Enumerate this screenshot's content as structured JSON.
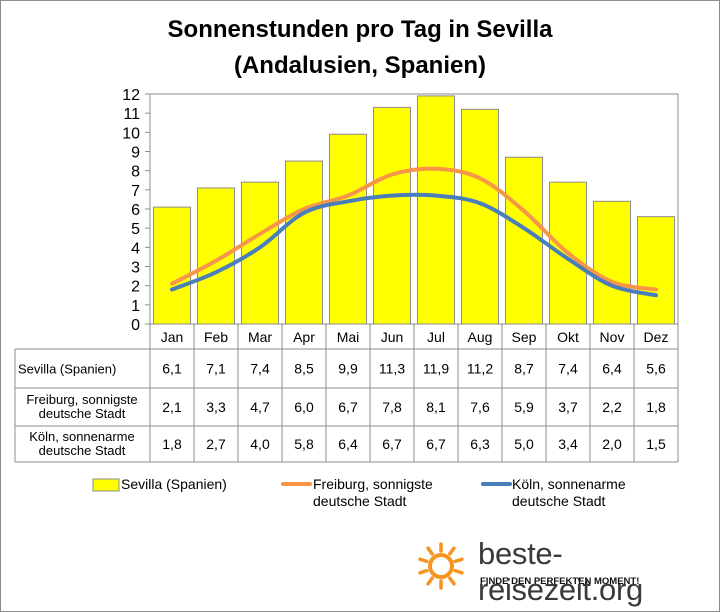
{
  "chart_data": {
    "type": "bar",
    "title_line1": "Sonnenstunden pro Tag in Sevilla",
    "title_line2": "(Andalusien, Spanien)",
    "categories": [
      "Jan",
      "Feb",
      "Mar",
      "Apr",
      "Mai",
      "Jun",
      "Jul",
      "Aug",
      "Sep",
      "Okt",
      "Nov",
      "Dez"
    ],
    "ylim": [
      0,
      12
    ],
    "yticks": [
      "0",
      "1",
      "2",
      "3",
      "4",
      "5",
      "6",
      "7",
      "8",
      "9",
      "10",
      "11",
      "12"
    ],
    "series": [
      {
        "name": "Sevilla (Spanien)",
        "kind": "bar",
        "color": "#ffff00",
        "values": [
          6.1,
          7.1,
          7.4,
          8.5,
          9.9,
          11.3,
          11.9,
          11.2,
          8.7,
          7.4,
          6.4,
          5.6
        ],
        "labels": [
          "6,1",
          "7,1",
          "7,4",
          "8,5",
          "9,9",
          "11,3",
          "11,9",
          "11,2",
          "8,7",
          "7,4",
          "6,4",
          "5,6"
        ]
      },
      {
        "name": "Freiburg, sonnigste deutsche Stadt",
        "name_line1": "Freiburg, sonnigste",
        "name_line2": "deutsche Stadt",
        "kind": "line",
        "color": "#f79646",
        "values": [
          2.1,
          3.3,
          4.7,
          6.0,
          6.7,
          7.8,
          8.1,
          7.6,
          5.9,
          3.7,
          2.2,
          1.8
        ],
        "labels": [
          "2,1",
          "3,3",
          "4,7",
          "6,0",
          "6,7",
          "7,8",
          "8,1",
          "7,6",
          "5,9",
          "3,7",
          "2,2",
          "1,8"
        ]
      },
      {
        "name": "Köln, sonnenarme deutsche Stadt",
        "name_line1": "Köln, sonnenarme",
        "name_line2": "deutsche Stadt",
        "kind": "line",
        "color": "#4a7ebb",
        "values": [
          1.8,
          2.7,
          4.0,
          5.8,
          6.4,
          6.7,
          6.7,
          6.3,
          5.0,
          3.4,
          2.0,
          1.5
        ],
        "labels": [
          "1,8",
          "2,7",
          "4,0",
          "5,8",
          "6,4",
          "6,7",
          "6,7",
          "6,3",
          "5,0",
          "3,4",
          "2,0",
          "1,5"
        ]
      }
    ]
  },
  "branding": {
    "name": "beste-reisezeit.org",
    "tagline": "FINDE DEN PERFEKTEN MOMENT!",
    "icon": "sun-icon",
    "icon_color": "#f7941d"
  }
}
